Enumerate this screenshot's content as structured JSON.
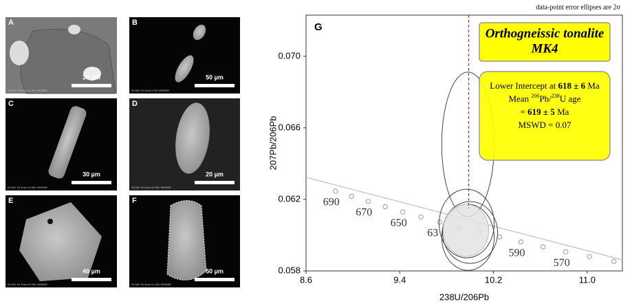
{
  "panels": [
    {
      "letter": "A",
      "scale": "20 µm",
      "footer": "20.0kV 10.0mm x2.00k YAGBSE"
    },
    {
      "letter": "B",
      "scale": "50 µm",
      "footer": "20.0kV 10.2mm x700 YAGBSE"
    },
    {
      "letter": "C",
      "scale": "30 µm",
      "footer": "20.0kV 10.2mm x1.50k YAGBSE"
    },
    {
      "letter": "D",
      "scale": "20 µm",
      "footer": "20.0kV 10.2mm x2.50k YAGBSE"
    },
    {
      "letter": "E",
      "scale": "40 µm",
      "footer": "20.0kV 10.7mm x1.20k YAGBSE"
    },
    {
      "letter": "F",
      "scale": "50 µm",
      "footer": "20.0kV 10.4mm x1.20k YAGBSE"
    }
  ],
  "chart_data": {
    "type": "concordia",
    "note": "data-point error ellipses are 2σ",
    "panel_letter": "G",
    "title": [
      "Orthogneissic tonalite",
      "MK4"
    ],
    "info": {
      "line1": [
        "Lower Intercept at ",
        "618 ± 6",
        " Ma"
      ],
      "line2": [
        "Mean ",
        "206",
        "Pb/",
        "238",
        "U age"
      ],
      "line3": [
        "= ",
        "619 ± 5",
        " Ma"
      ],
      "line4": "MSWD = 0.07"
    },
    "x_label": "238U/206Pb",
    "y_label": "207Pb/206Pb",
    "xlim": [
      8.6,
      11.3
    ],
    "ylim": [
      0.058,
      0.0723
    ],
    "xticks": [
      8.6,
      9.4,
      10.2,
      {
        "value": 11.0,
        "label": "11.0"
      }
    ],
    "yticks": [
      0.058,
      0.062,
      0.066,
      {
        "value": 0.07,
        "label": "0.070"
      }
    ],
    "concordia": {
      "x": [
        8.851,
        8.989,
        9.13,
        9.276,
        9.426,
        9.581,
        9.74,
        9.905,
        10.076,
        10.252,
        10.434,
        10.622,
        10.817,
        11.019,
        11.228
      ],
      "values": [
        0.06246,
        0.06217,
        0.06188,
        0.06159,
        0.0613,
        0.06102,
        0.06073,
        0.06045,
        0.06017,
        0.0599,
        0.05962,
        0.05935,
        0.05907,
        0.0588,
        0.05853
      ],
      "point_labels": [
        "690",
        null,
        "670",
        null,
        "650",
        null,
        "63",
        null,
        null,
        null,
        "590",
        null,
        "570",
        null,
        null
      ]
    },
    "discordia": {
      "x": [
        8.6,
        11.3
      ],
      "values": [
        0.06323,
        0.05862
      ]
    },
    "vline_x": 9.988,
    "ellipses": [
      {
        "x": 9.982,
        "xerr": 0.224,
        "y": 0.06508,
        "yerr": 0.00404,
        "filled": false
      },
      {
        "x": 9.971,
        "xerr": 0.235,
        "y": 0.06065,
        "yerr": 0.00192,
        "filled": false
      },
      {
        "x": 10.0,
        "xerr": 0.235,
        "y": 0.06015,
        "yerr": 0.00173,
        "filled": false
      },
      {
        "x": 9.982,
        "xerr": 0.224,
        "y": 0.05988,
        "yerr": 0.00185,
        "filled": false
      },
      {
        "x": 9.965,
        "xerr": 0.194,
        "y": 0.06027,
        "yerr": 0.00146,
        "filled": true
      }
    ]
  }
}
